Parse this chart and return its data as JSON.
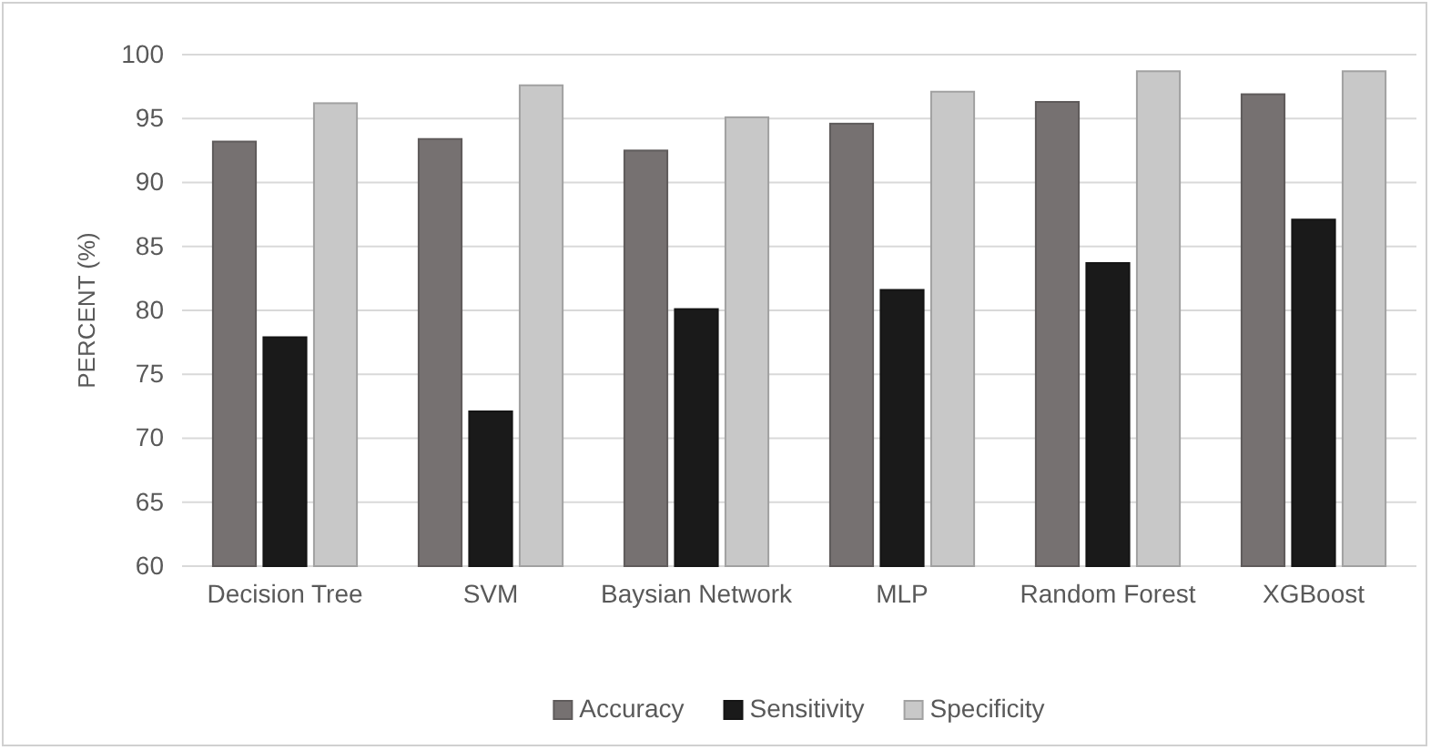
{
  "chart_data": {
    "type": "bar",
    "ylabel": "PERCENT (%)",
    "categories": [
      "Decision Tree",
      "SVM",
      "Baysian Network",
      "MLP",
      "Random Forest",
      "XGBoost"
    ],
    "series": [
      {
        "name": "Accuracy",
        "color": "#767171",
        "values": [
          93.2,
          93.4,
          92.5,
          94.6,
          96.3,
          96.9
        ]
      },
      {
        "name": "Sensitivity",
        "color": "#1a1a1a",
        "values": [
          77.9,
          72.1,
          80.1,
          81.6,
          83.7,
          87.1
        ]
      },
      {
        "name": "Specificity",
        "color": "#c8c8c8",
        "values": [
          96.2,
          97.6,
          95.1,
          97.1,
          98.7,
          98.7
        ]
      }
    ],
    "ylim": [
      60,
      100
    ],
    "yticks": [
      60,
      65,
      70,
      75,
      80,
      85,
      90,
      95,
      100
    ],
    "grid": "y",
    "legend": "bottom"
  }
}
